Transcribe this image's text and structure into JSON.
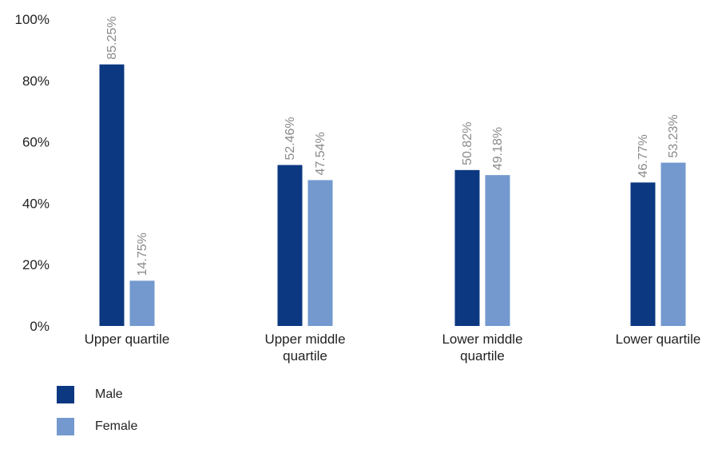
{
  "chart_data": {
    "type": "bar",
    "categories": [
      [
        "Upper quartile"
      ],
      [
        "Upper middle",
        "quartile"
      ],
      [
        "Lower middle",
        "quartile"
      ],
      [
        "Lower quartile"
      ]
    ],
    "series": [
      {
        "name": "Male",
        "color": "#0b3880",
        "values": [
          85.25,
          52.46,
          50.82,
          46.77
        ],
        "labels": [
          "85.25%",
          "52.46%",
          "50.82%",
          "46.77%"
        ]
      },
      {
        "name": "Female",
        "color": "#7399cf",
        "values": [
          14.75,
          47.54,
          49.18,
          53.23
        ],
        "labels": [
          "14.75%",
          "47.54%",
          "49.18%",
          "53.23%"
        ]
      }
    ],
    "y_ticks": [
      {
        "value": 0,
        "label": "0%"
      },
      {
        "value": 20,
        "label": "20%"
      },
      {
        "value": 40,
        "label": "40%"
      },
      {
        "value": 60,
        "label": "60%"
      },
      {
        "value": 80,
        "label": "80%"
      },
      {
        "value": 100,
        "label": "100%"
      }
    ],
    "ylim": [
      0,
      100
    ],
    "title": "",
    "xlabel": "",
    "ylabel": "",
    "grid": false,
    "legend_position": "bottom-left"
  }
}
